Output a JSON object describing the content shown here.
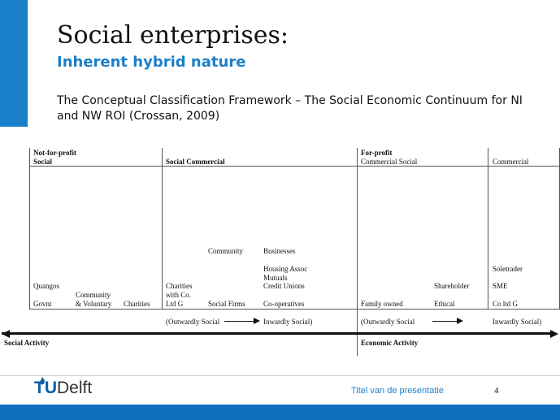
{
  "slide": {
    "title": "Social enterprises:",
    "subtitle": "Inherent hybrid nature",
    "description": "The Conceptual Classification Framework – The Social Economic Continuum for NI and NW ROI (Crossan, 2009)"
  },
  "framework": {
    "headers": {
      "nfp_line1": "Not-for-profit",
      "nfp_line2": "Social",
      "social_commercial": "Social Commercial",
      "fp_line1": "For-profit",
      "fp_line2": "Commercial Social",
      "commercial": "Commercial"
    },
    "cells": {
      "quangos": "Quangos",
      "govnt": "Govnt",
      "community_voluntary_1": "Community",
      "community_voluntary_2": "& Voluntary",
      "charities": "Charities",
      "charities_co_1": "Charities",
      "charities_co_2": "with Co.",
      "charities_co_3": "Ltd G",
      "community": "Community",
      "social_firms": "Social Firms",
      "businesses": "Businesses",
      "housing_assoc": "Housing Assoc",
      "mutuals": "Mutuals",
      "credit_unions": "Credit Unions",
      "co_operatives": "Co-operatives",
      "family_owned": "Family owned",
      "shareholder": "Shareholder",
      "ethical": "Ethical",
      "soletrader": "Soletrader",
      "sme": "SME",
      "co_ltd_g": "Co ltd G"
    },
    "orientation": {
      "outwardly_social_1": "(Outwardly Social",
      "inwardly_social_1": "Inwardly Social)",
      "outwardly_social_2": "(Outwardly Social",
      "inwardly_social_2": "Inwardly Social)"
    },
    "axis": {
      "social_activity": "Social Activity",
      "economic_activity": "Economic Activity"
    }
  },
  "footer": {
    "logo_t": "T",
    "logo_u": "U",
    "logo_delft": "Delft",
    "caption": "Titel van de presentatie",
    "page_number": "4"
  },
  "colors": {
    "accent": "#1a7fc9",
    "footer_bar": "#0e6fbf",
    "logo_blue": "#0e5ea8"
  }
}
